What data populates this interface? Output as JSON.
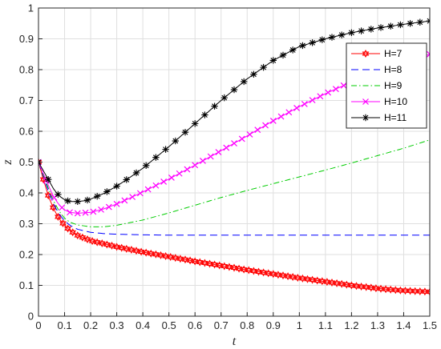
{
  "chart_data": {
    "type": "line",
    "title": "",
    "xlabel": "t",
    "ylabel": "z",
    "xlim": [
      0,
      1.5
    ],
    "ylim": [
      0,
      1
    ],
    "xticks": [
      "0",
      "0.1",
      "0.2",
      "0.3",
      "0.4",
      "0.5",
      "0.6",
      "0.7",
      "0.8",
      "0.9",
      "1",
      "1.1",
      "1.2",
      "1.3",
      "1.4",
      "1.5"
    ],
    "yticks": [
      "0",
      "0.1",
      "0.2",
      "0.3",
      "0.4",
      "0.5",
      "0.6",
      "0.7",
      "0.8",
      "0.9",
      "1"
    ],
    "grid": true,
    "legend_position": "top-right",
    "series": [
      {
        "name": "H=7",
        "color": "#ff0000",
        "line_style": "solid",
        "marker": "hexagram",
        "marker_count": 80,
        "x": [
          0,
          0.02,
          0.04,
          0.06,
          0.08,
          0.1,
          0.12,
          0.15,
          0.2,
          0.3,
          0.4,
          0.5,
          0.6,
          0.7,
          0.8,
          0.9,
          1.0,
          1.1,
          1.2,
          1.3,
          1.4,
          1.5
        ],
        "y": [
          0.5,
          0.44,
          0.385,
          0.345,
          0.315,
          0.295,
          0.278,
          0.262,
          0.245,
          0.225,
          0.208,
          0.193,
          0.178,
          0.164,
          0.15,
          0.137,
          0.124,
          0.112,
          0.1,
          0.09,
          0.083,
          0.079
        ]
      },
      {
        "name": "H=8",
        "color": "#0000ff",
        "line_style": "dashed",
        "marker": "none",
        "x": [
          0,
          0.02,
          0.04,
          0.06,
          0.08,
          0.1,
          0.12,
          0.15,
          0.2,
          0.25,
          0.3,
          0.4,
          0.5,
          0.6,
          0.8,
          1.0,
          1.2,
          1.5
        ],
        "y": [
          0.5,
          0.45,
          0.4,
          0.36,
          0.33,
          0.31,
          0.295,
          0.282,
          0.272,
          0.268,
          0.266,
          0.264,
          0.263,
          0.263,
          0.263,
          0.263,
          0.263,
          0.263
        ]
      },
      {
        "name": "H=9",
        "color": "#00cc00",
        "line_style": "dashdot",
        "marker": "none",
        "x": [
          0,
          0.02,
          0.04,
          0.06,
          0.08,
          0.1,
          0.12,
          0.15,
          0.2,
          0.25,
          0.3,
          0.4,
          0.5,
          0.6,
          0.7,
          0.8,
          0.9,
          1.0,
          1.1,
          1.2,
          1.3,
          1.4,
          1.5
        ],
        "y": [
          0.5,
          0.455,
          0.41,
          0.37,
          0.34,
          0.318,
          0.305,
          0.296,
          0.29,
          0.29,
          0.295,
          0.312,
          0.335,
          0.36,
          0.385,
          0.408,
          0.43,
          0.452,
          0.474,
          0.497,
          0.521,
          0.545,
          0.572
        ]
      },
      {
        "name": "H=10",
        "color": "#ff00ff",
        "line_style": "solid",
        "marker": "x",
        "marker_count": 50,
        "x": [
          0,
          0.02,
          0.04,
          0.06,
          0.08,
          0.1,
          0.12,
          0.15,
          0.2,
          0.25,
          0.3,
          0.35,
          0.4,
          0.5,
          0.6,
          0.7,
          0.8,
          0.9,
          1.0,
          1.1,
          1.2,
          1.3,
          1.4,
          1.5
        ],
        "y": [
          0.5,
          0.46,
          0.42,
          0.385,
          0.36,
          0.345,
          0.337,
          0.334,
          0.337,
          0.348,
          0.364,
          0.383,
          0.403,
          0.445,
          0.49,
          0.537,
          0.585,
          0.634,
          0.68,
          0.722,
          0.76,
          0.795,
          0.825,
          0.85
        ]
      },
      {
        "name": "H=11",
        "color": "#000000",
        "line_style": "solid",
        "marker": "asterisk",
        "marker_count": 40,
        "x": [
          0,
          0.02,
          0.04,
          0.06,
          0.08,
          0.1,
          0.12,
          0.15,
          0.18,
          0.2,
          0.25,
          0.3,
          0.35,
          0.4,
          0.5,
          0.6,
          0.7,
          0.8,
          0.9,
          1.0,
          1.1,
          1.2,
          1.3,
          1.4,
          1.5
        ],
        "y": [
          0.5,
          0.47,
          0.44,
          0.41,
          0.39,
          0.378,
          0.372,
          0.372,
          0.375,
          0.38,
          0.398,
          0.422,
          0.45,
          0.48,
          0.55,
          0.625,
          0.7,
          0.77,
          0.83,
          0.875,
          0.9,
          0.92,
          0.935,
          0.947,
          0.958
        ]
      }
    ]
  }
}
